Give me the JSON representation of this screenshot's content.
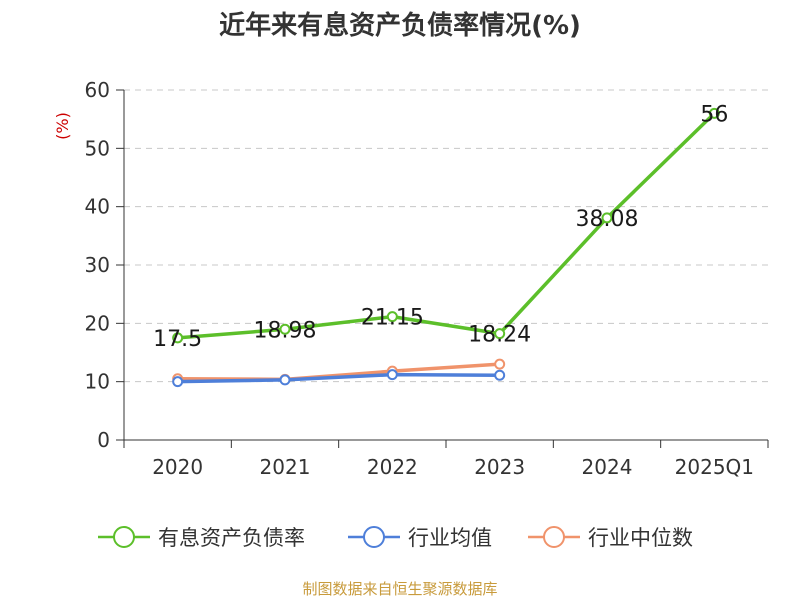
{
  "chart_data": {
    "type": "line",
    "title": "近年来有息资产负债率情况(%)",
    "ylabel": "(%)",
    "categories": [
      "2020",
      "2021",
      "2022",
      "2023",
      "2024",
      "2025Q1"
    ],
    "ylim": [
      0,
      60
    ],
    "yticks": [
      0,
      10,
      20,
      30,
      40,
      50,
      60
    ],
    "grid": true,
    "legend_position": "bottom",
    "series": [
      {
        "name": "有息资产负债率",
        "color": "#5cbf2a",
        "values": [
          17.5,
          18.98,
          21.15,
          18.24,
          38.08,
          56
        ],
        "labels": [
          "17.5",
          "18.98",
          "21.15",
          "18.24",
          "38.08",
          "56"
        ]
      },
      {
        "name": "行业均值",
        "color": "#4e7fd9",
        "values": [
          10.0,
          10.3,
          11.2,
          11.1,
          null,
          null
        ]
      },
      {
        "name": "行业中位数",
        "color": "#f0936b",
        "values": [
          10.5,
          10.4,
          11.8,
          13.0,
          null,
          null
        ]
      }
    ]
  },
  "source_text": "制图数据来自恒生聚源数据库"
}
